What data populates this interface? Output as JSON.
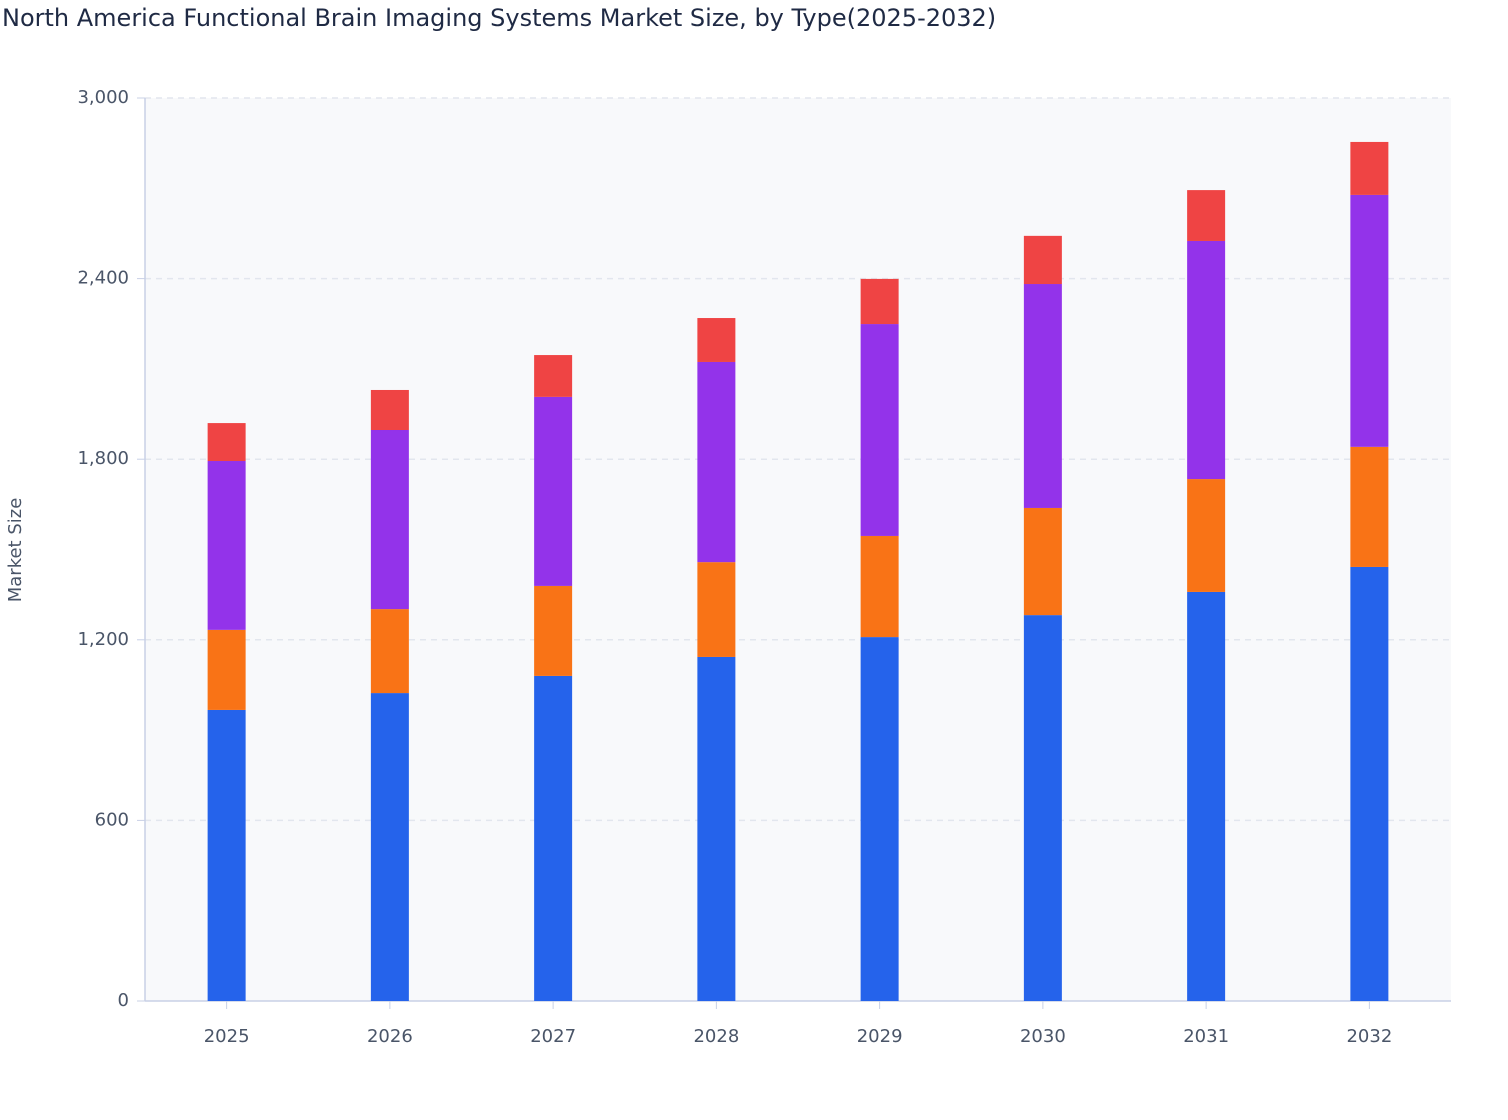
{
  "chart_data": {
    "type": "stacked_bar",
    "title": "North America Functional Brain Imaging Systems Market Size, by Type(2025-2032)",
    "y_label": "Market Size",
    "categories": [
      "2025",
      "2026",
      "2027",
      "2028",
      "2029",
      "2030",
      "2031",
      "2032"
    ],
    "series": [
      {
        "color": "#2563eb",
        "values": [
          967,
          1023,
          1080,
          1143,
          1209,
          1282,
          1359,
          1442
        ]
      },
      {
        "color": "#f97316",
        "values": [
          266,
          279,
          299,
          315,
          336,
          356,
          375,
          399
        ]
      },
      {
        "color": "#9333ea",
        "values": [
          561,
          595,
          628,
          665,
          704,
          744,
          791,
          837
        ]
      },
      {
        "color": "#ef4444",
        "values": [
          126,
          133,
          139,
          146,
          150,
          160,
          169,
          176
        ]
      }
    ],
    "ylim": [
      0,
      3000
    ],
    "yticks": [
      0,
      600,
      {
        "value": 1200,
        "label": "1,200"
      },
      {
        "value": 1800,
        "label": "1,800"
      },
      {
        "value": 2400,
        "label": "2,400"
      },
      {
        "value": 3000,
        "label": "3,000"
      }
    ],
    "grid": true
  }
}
